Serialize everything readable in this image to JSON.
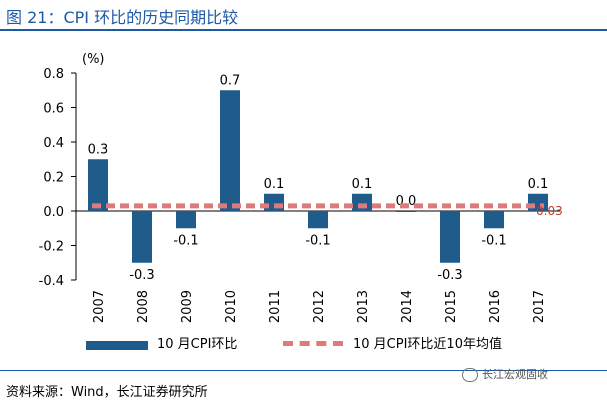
{
  "title": "图 21：CPI 环比的历史同期比较",
  "source": "资料来源：Wind，长江证券研究所",
  "watermark": "长江宏观固收",
  "chart_data": {
    "type": "bar",
    "unit_label": "(%)",
    "categories": [
      "2007",
      "2008",
      "2009",
      "2010",
      "2011",
      "2012",
      "2013",
      "2014",
      "2015",
      "2016",
      "2017"
    ],
    "series": [
      {
        "name": "10 月CPI环比",
        "type": "bar",
        "color": "#1f5c8b",
        "values": [
          0.3,
          -0.3,
          -0.1,
          0.7,
          0.1,
          -0.1,
          0.1,
          0.0,
          -0.3,
          -0.1,
          0.1
        ],
        "data_labels": [
          "0.3",
          "-0.3",
          "-0.1",
          "0.7",
          "0.1",
          "-0.1",
          "0.1",
          "0.0",
          "-0.3",
          "-0.1",
          "0.1"
        ]
      },
      {
        "name": "10 月CPI环比近10年均值",
        "type": "line",
        "style": "dashed",
        "color": "#e07979",
        "value": 0.03,
        "data_label": "0.03"
      }
    ],
    "ylim": [
      -0.4,
      0.8
    ],
    "yticks": [
      "0.8",
      "0.6",
      "0.4",
      "0.2",
      "0.0",
      "-0.2",
      "-0.4"
    ],
    "legend_position": "bottom",
    "grid": false
  }
}
